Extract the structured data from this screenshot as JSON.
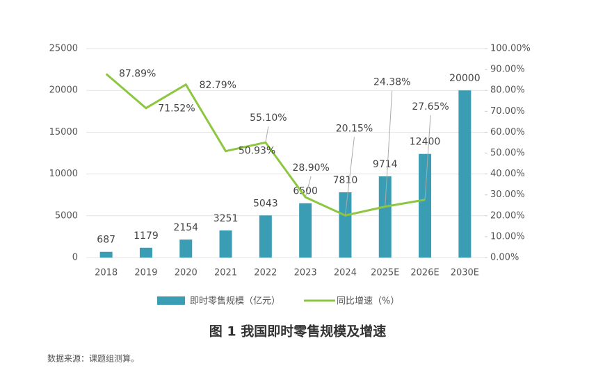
{
  "chart_data": {
    "type": "combo",
    "title": "图 1 我国即时零售规模及增速",
    "source": "数据来源：课题组测算。",
    "categories": [
      "2018",
      "2019",
      "2020",
      "2021",
      "2022",
      "2023",
      "2024",
      "2025E",
      "2026E",
      "2030E"
    ],
    "series": [
      {
        "name": "即时零售规模（亿元）",
        "type": "bar",
        "color": "#3b9db3",
        "values": [
          687,
          1179,
          2154,
          3251,
          5043,
          6500,
          7810,
          9714,
          12400,
          20000
        ]
      },
      {
        "name": "同比增速（%）",
        "type": "line",
        "axis": "y2",
        "color": "#8dc63f",
        "values": [
          87.89,
          71.52,
          82.79,
          50.93,
          55.1,
          28.9,
          20.15,
          24.38,
          27.65,
          null
        ],
        "value_labels": [
          "87.89%",
          "71.52%",
          "82.79%",
          "50.93%",
          "55.10%",
          "28.90%",
          "20.15%",
          "24.38%",
          "27.65%",
          null
        ]
      }
    ],
    "ylim": [
      0,
      25000
    ],
    "yticks": [
      0,
      5000,
      10000,
      15000,
      20000,
      25000
    ],
    "y2lim": [
      0,
      100
    ],
    "y2ticks": [
      {
        "value": 0,
        "label": "0.00%"
      },
      {
        "value": 10,
        "label": "10.00%"
      },
      {
        "value": 20,
        "label": "20.00%"
      },
      {
        "value": 30,
        "label": "30.00%"
      },
      {
        "value": 40,
        "label": "40.00%"
      },
      {
        "value": 50,
        "label": "50.00%"
      },
      {
        "value": 60,
        "label": "60.00%"
      },
      {
        "value": 70,
        "label": "70.00%"
      },
      {
        "value": 80,
        "label": "80.00%"
      },
      {
        "value": 90,
        "label": "90.00%"
      },
      {
        "value": 100,
        "label": "100.00%"
      }
    ],
    "grid": true,
    "legend": "bottom"
  }
}
